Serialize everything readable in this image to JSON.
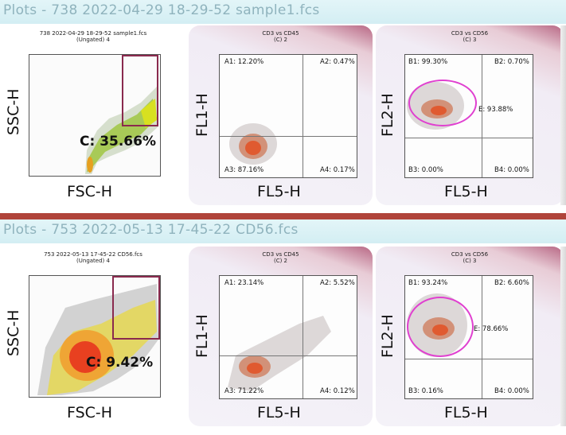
{
  "sections": [
    {
      "title": "Plots - 738 2022-04-29 18-29-52 sample1.fcs",
      "plot1": {
        "title": "738 2022-04-29 18-29-52 sample1.fcs",
        "subtitle": "(Ungated) 4",
        "ylabel": "SSC-H",
        "xlabel": "FSC-H",
        "gate": "C: 35.66%"
      },
      "plot2": {
        "title": "CD3 vs CD45",
        "subtitle": "(C) 2",
        "ylabel": "FL1-H",
        "xlabel": "FL5-H",
        "q1": "A1: 12.20%",
        "q2": "A2: 0.47%",
        "q3": "A3: 87.16%",
        "q4": "A4: 0.17%"
      },
      "plot3": {
        "title": "CD3 vs CD56",
        "subtitle": "(C) 3",
        "ylabel": "FL2-H",
        "xlabel": "FL5-H",
        "q1": "B1: 99.30%",
        "q2": "B2: 0.70%",
        "q3": "B3: 0.00%",
        "q4": "B4: 0.00%",
        "ellipse": "E: 93.88%"
      }
    },
    {
      "title": "Plots - 753 2022-05-13 17-45-22 CD56.fcs",
      "plot1": {
        "title": "753 2022-05-13 17-45-22 CD56.fcs",
        "subtitle": "(Ungated) 4",
        "ylabel": "SSC-H",
        "xlabel": "FSC-H",
        "gate": "C: 9.42%"
      },
      "plot2": {
        "title": "CD3 vs CD45",
        "subtitle": "(C) 2",
        "ylabel": "FL1-H",
        "xlabel": "FL5-H",
        "q1": "A1: 23.14%",
        "q2": "A2: 5.52%",
        "q3": "A3: 71.22%",
        "q4": "A4: 0.12%"
      },
      "plot3": {
        "title": "CD3 vs CD56",
        "subtitle": "(C) 3",
        "ylabel": "FL2-H",
        "xlabel": "FL5-H",
        "q1": "B1: 93.24%",
        "q2": "B2: 6.60%",
        "q3": "B3: 0.16%",
        "q4": "B4: 0.00%",
        "ellipse": "E: 78.66%"
      }
    }
  ],
  "colors": {
    "gate_box": "#8a2a4e",
    "ellipse_gate": "#e040d0",
    "divider": "#b0443a",
    "title_text": "#8fb3bd"
  }
}
